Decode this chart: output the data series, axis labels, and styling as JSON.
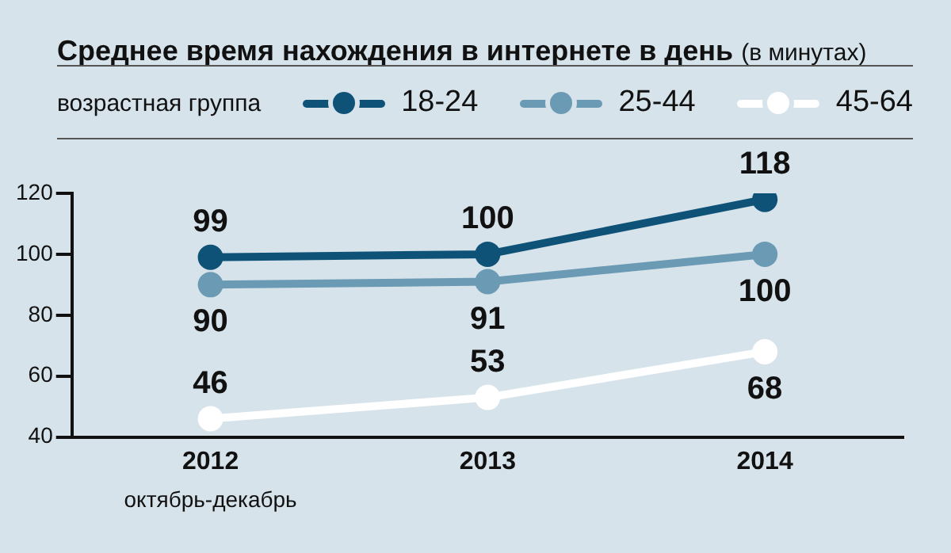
{
  "chart_data": {
    "type": "line",
    "title": "Среднее время нахождения в интернете в день",
    "subtitle": "(в минутах)",
    "legend_title": "возрастная группа",
    "categories": [
      "2012",
      "2013",
      "2014"
    ],
    "series": [
      {
        "name": "18-24",
        "color": "#0f5278",
        "values": [
          99,
          100,
          118
        ]
      },
      {
        "name": "25-44",
        "color": "#6b9ab4",
        "values": [
          90,
          91,
          100
        ]
      },
      {
        "name": "45-64",
        "color": "#ffffff",
        "values": [
          46,
          53,
          68
        ]
      }
    ],
    "ylim": [
      40,
      120
    ],
    "yticks": [
      40,
      60,
      80,
      100,
      120
    ],
    "grid": false,
    "legend": "top",
    "marker": "circle",
    "line_style": "solid",
    "data_labels": true,
    "annotations": [
      "октябрь-декабрь"
    ]
  }
}
